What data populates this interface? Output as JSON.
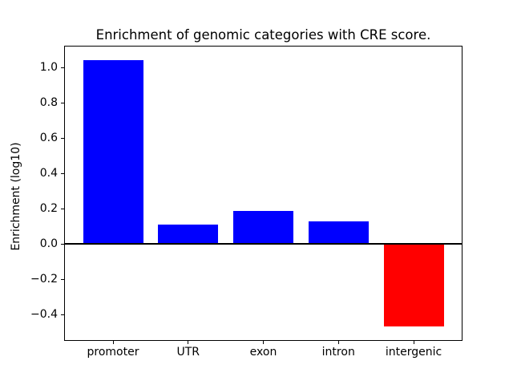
{
  "chart_data": {
    "type": "bar",
    "title": "Enrichment of genomic categories with CRE score.",
    "xlabel": "",
    "ylabel": "Enrichment (log10)",
    "categories": [
      "promoter",
      "UTR",
      "exon",
      "intron",
      "intergenic"
    ],
    "values": [
      1.04,
      0.11,
      0.185,
      0.125,
      -0.47
    ],
    "series": [
      {
        "name": "Enrichment (log10)",
        "values": [
          1.04,
          0.11,
          0.185,
          0.125,
          -0.47
        ]
      }
    ],
    "positive_color": "#0000ff",
    "negative_color": "#ff0000",
    "axis_color": "#000000",
    "background_color": "#ffffff",
    "yticks": [
      1.0,
      0.8,
      0.6,
      0.4,
      0.2,
      0.0,
      -0.2,
      -0.4
    ],
    "ytick_labels": [
      "1.0",
      "0.8",
      "0.6",
      "0.4",
      "0.2",
      "0.0",
      "−0.2",
      "−0.4"
    ],
    "ylim": [
      -0.546,
      1.116
    ],
    "xlim": [
      -0.64,
      4.64
    ],
    "bar_width_fraction": 0.8,
    "grid": false,
    "legend": null,
    "zero_baseline": true
  }
}
